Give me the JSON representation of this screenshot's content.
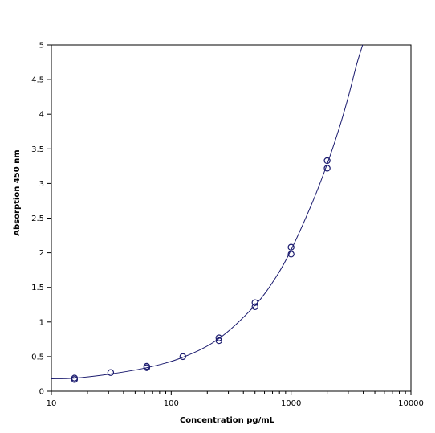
{
  "chart_data": {
    "type": "scatter",
    "title": "",
    "xlabel": "Concentration pg/mL",
    "ylabel": "Absorption 450 nm",
    "xscale": "log",
    "xlim": [
      10,
      10000
    ],
    "ylim": [
      0,
      5
    ],
    "xticks": [
      10,
      100,
      1000,
      10000
    ],
    "xtick_labels": [
      "10",
      "100",
      "1000",
      "10000"
    ],
    "yticks": [
      0,
      0.5,
      1,
      1.5,
      2,
      2.5,
      3,
      3.5,
      4,
      4.5,
      5
    ],
    "ytick_labels": [
      "0",
      "0.5",
      "1",
      "1.5",
      "2",
      "2.5",
      "3",
      "3.5",
      "4",
      "4.5",
      "5"
    ],
    "grid": false,
    "legend": "none",
    "colors": {
      "markers": "#1a1a6e",
      "curve": "#1a1a6e",
      "axes": "#000000"
    },
    "series": [
      {
        "type": "scatter",
        "marker": "open-circle",
        "points": [
          [
            15.6,
            0.17
          ],
          [
            15.6,
            0.19
          ],
          [
            31.25,
            0.27
          ],
          [
            62.5,
            0.34
          ],
          [
            62.5,
            0.36
          ],
          [
            125,
            0.5
          ],
          [
            250,
            0.73
          ],
          [
            250,
            0.77
          ],
          [
            500,
            1.22
          ],
          [
            500,
            1.28
          ],
          [
            1000,
            1.98
          ],
          [
            1000,
            2.08
          ],
          [
            2000,
            3.22
          ],
          [
            2000,
            3.33
          ]
        ]
      },
      {
        "type": "line",
        "name": "",
        "points": [
          [
            10,
            0.18
          ],
          [
            15.6,
            0.19
          ],
          [
            31.25,
            0.25
          ],
          [
            62.5,
            0.34
          ],
          [
            125,
            0.49
          ],
          [
            250,
            0.76
          ],
          [
            500,
            1.24
          ],
          [
            750,
            1.65
          ],
          [
            1000,
            2.04
          ],
          [
            1500,
            2.72
          ],
          [
            2000,
            3.28
          ],
          [
            2500,
            3.78
          ],
          [
            3000,
            4.25
          ],
          [
            3500,
            4.7
          ],
          [
            3950,
            5.0
          ]
        ]
      }
    ]
  }
}
